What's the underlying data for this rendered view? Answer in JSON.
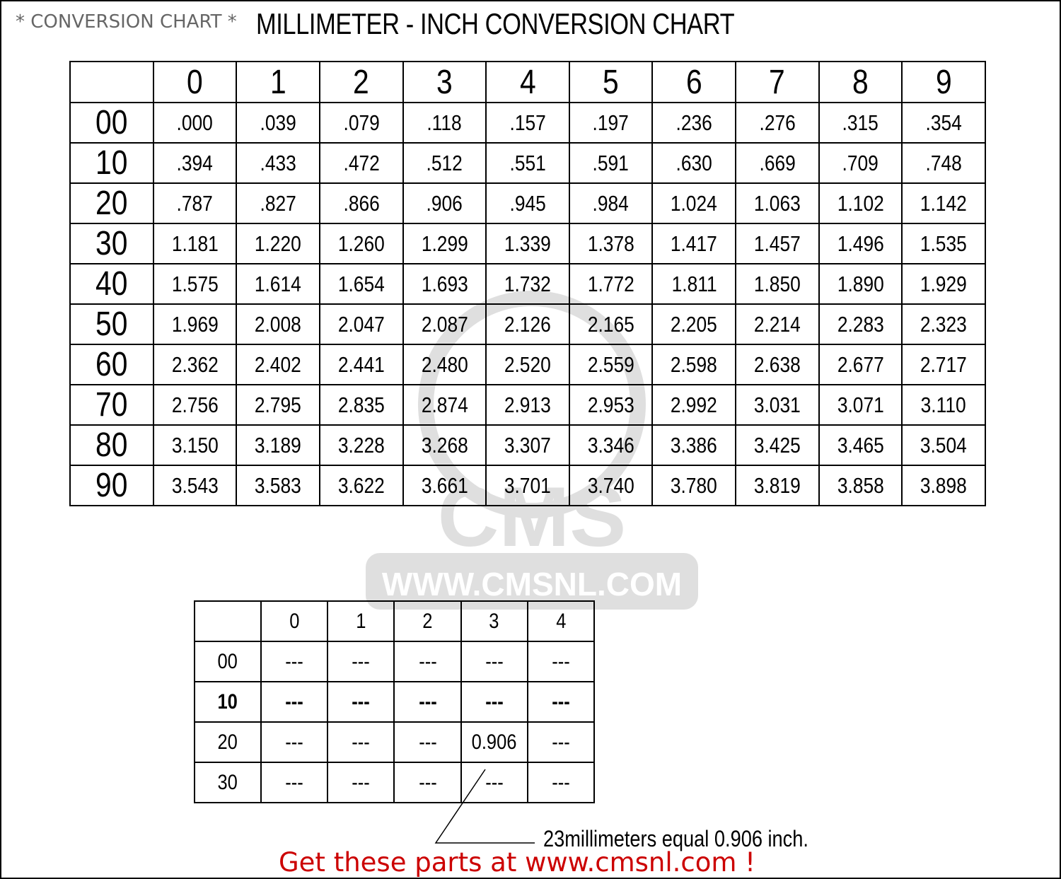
{
  "header": {
    "subtitle": "* CONVERSION CHART *",
    "title": "MILLIMETER - INCH CONVERSION CHART"
  },
  "main_table": {
    "column_headers": [
      "0",
      "1",
      "2",
      "3",
      "4",
      "5",
      "6",
      "7",
      "8",
      "9"
    ],
    "rows": [
      {
        "label": "00",
        "values": [
          ".000",
          ".039",
          ".079",
          ".118",
          ".157",
          ".197",
          ".236",
          ".276",
          ".315",
          ".354"
        ]
      },
      {
        "label": "10",
        "values": [
          ".394",
          ".433",
          ".472",
          ".512",
          ".551",
          ".591",
          ".630",
          ".669",
          ".709",
          ".748"
        ]
      },
      {
        "label": "20",
        "values": [
          ".787",
          ".827",
          ".866",
          ".906",
          ".945",
          ".984",
          "1.024",
          "1.063",
          "1.102",
          "1.142"
        ]
      },
      {
        "label": "30",
        "values": [
          "1.181",
          "1.220",
          "1.260",
          "1.299",
          "1.339",
          "1.378",
          "1.417",
          "1.457",
          "1.496",
          "1.535"
        ]
      },
      {
        "label": "40",
        "values": [
          "1.575",
          "1.614",
          "1.654",
          "1.693",
          "1.732",
          "1.772",
          "1.811",
          "1.850",
          "1.890",
          "1.929"
        ]
      },
      {
        "label": "50",
        "values": [
          "1.969",
          "2.008",
          "2.047",
          "2.087",
          "2.126",
          "2.165",
          "2.205",
          "2.214",
          "2.283",
          "2.323"
        ]
      },
      {
        "label": "60",
        "values": [
          "2.362",
          "2.402",
          "2.441",
          "2.480",
          "2.520",
          "2.559",
          "2.598",
          "2.638",
          "2.677",
          "2.717"
        ]
      },
      {
        "label": "70",
        "values": [
          "2.756",
          "2.795",
          "2.835",
          "2.874",
          "2.913",
          "2.953",
          "2.992",
          "3.031",
          "3.071",
          "3.110"
        ]
      },
      {
        "label": "80",
        "values": [
          "3.150",
          "3.189",
          "3.228",
          "3.268",
          "3.307",
          "3.346",
          "3.386",
          "3.425",
          "3.465",
          "3.504"
        ]
      },
      {
        "label": "90",
        "values": [
          "3.543",
          "3.583",
          "3.622",
          "3.661",
          "3.701",
          "3.740",
          "3.780",
          "3.819",
          "3.858",
          "3.898"
        ]
      }
    ]
  },
  "example_table": {
    "column_headers": [
      "0",
      "1",
      "2",
      "3",
      "4"
    ],
    "rows": [
      {
        "label": "00",
        "values": [
          "---",
          "---",
          "---",
          "---",
          "---"
        ]
      },
      {
        "label": "10",
        "values": [
          "---",
          "---",
          "---",
          "---",
          "---"
        ]
      },
      {
        "label": "20",
        "values": [
          "---",
          "---",
          "---",
          "0.906",
          "---"
        ]
      },
      {
        "label": "30",
        "values": [
          "---",
          "---",
          "---",
          "---",
          "---"
        ]
      }
    ]
  },
  "example_note": "23millimeters equal 0.906 inch.",
  "footer_link": "Get these parts at www.cmsnl.com !",
  "watermark": {
    "logo_text": "CMS",
    "url_text": "WWW.CMSNL.COM"
  },
  "colors": {
    "footer": "#cc0000",
    "subtitle": "#666666"
  }
}
